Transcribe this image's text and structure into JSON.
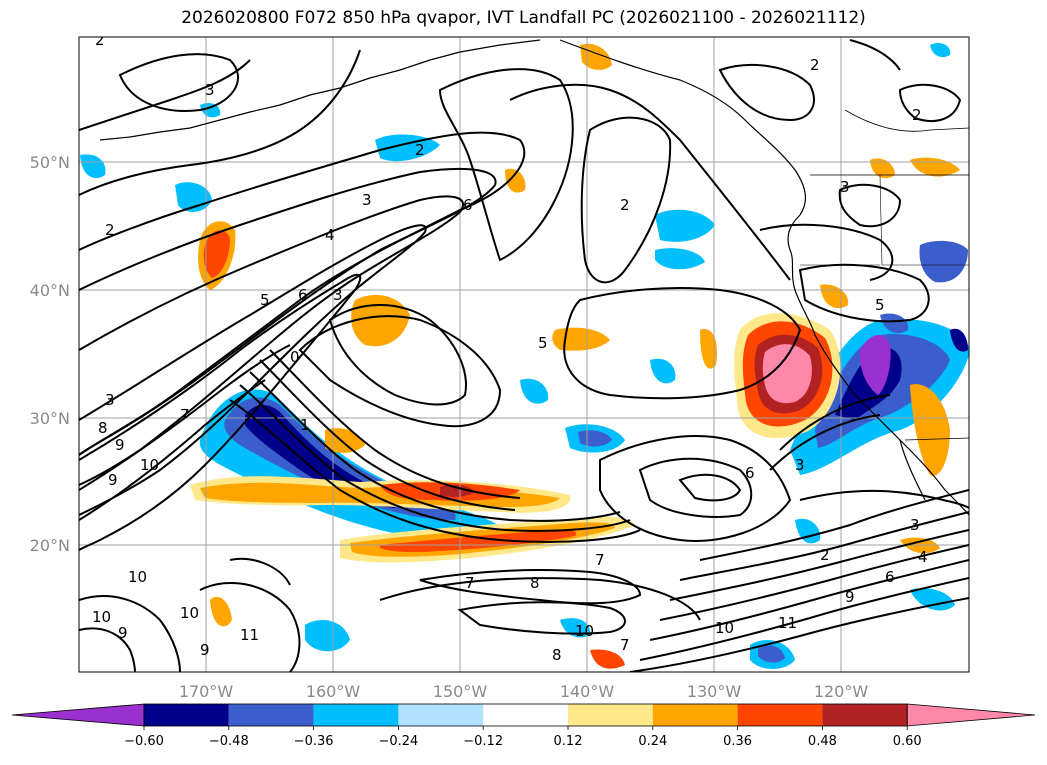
{
  "title": "2026020800 F072 850 hPa qvapor, IVT Landfall PC (2026021100 - 2026021112)",
  "lat_axis": {
    "labels": [
      "50°N",
      "40°N",
      "30°N",
      "20°N"
    ]
  },
  "lon_axis": {
    "labels": [
      "170°W",
      "160°W",
      "150°W",
      "140°W",
      "130°W",
      "120°W"
    ]
  },
  "colorbar": {
    "colors": [
      "#9b30d0",
      "#00008b",
      "#3a5fcd",
      "#00bfff",
      "#b0e2ff",
      "#ffffff",
      "#ffe88a",
      "#ffa500",
      "#ff4500",
      "#b22222",
      "#ff88aa"
    ],
    "ticks": [
      "−0.60",
      "−0.48",
      "−0.36",
      "−0.24",
      "−0.12",
      "0.12",
      "0.24",
      "0.36",
      "0.48",
      "0.60"
    ]
  },
  "contour_labels": [
    "2",
    "3",
    "2",
    "2",
    "2",
    "3",
    "4",
    "5",
    "6",
    "5",
    "3",
    "2",
    "2",
    "5",
    "6",
    "0",
    "1",
    "3",
    "8",
    "9",
    "10",
    "9",
    "7",
    "3",
    "3",
    "6",
    "10",
    "10",
    "9",
    "10",
    "11",
    "9",
    "7",
    "8",
    "7",
    "10",
    "8",
    "7",
    "6",
    "9",
    "10",
    "11",
    "2",
    "3",
    "4"
  ],
  "colors": {
    "contour": "#000000",
    "grid": "#a0a0a0",
    "coast": "#000000"
  }
}
